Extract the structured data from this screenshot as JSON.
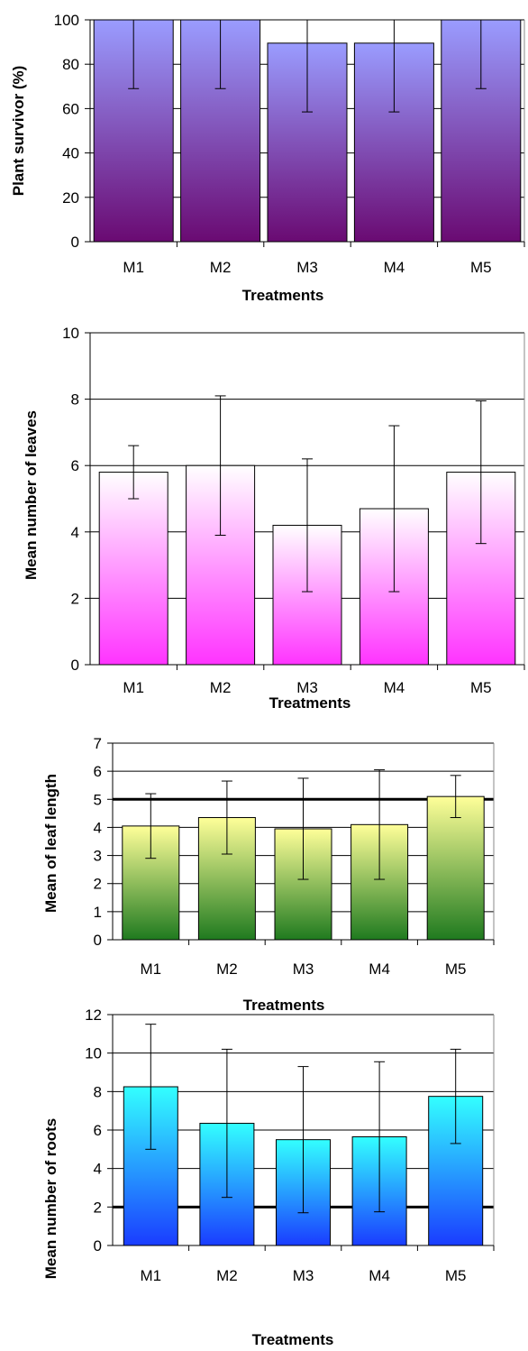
{
  "chart_data": [
    {
      "type": "bar",
      "categories": [
        "M1",
        "M2",
        "M3",
        "M4",
        "M5"
      ],
      "values": [
        100,
        100,
        89.5,
        89.5,
        100
      ],
      "error": [
        31,
        31,
        31,
        31,
        31
      ],
      "xlabel": "Treatments",
      "ylabel": "Plant survivor (%)",
      "ylim": [
        0,
        100
      ],
      "yticks": [
        "0",
        "20",
        "40",
        "60",
        "80",
        "100"
      ],
      "grid": true,
      "legend": "none",
      "bar_gradient": [
        "#9a9cff",
        "#6a0a72"
      ]
    },
    {
      "type": "bar",
      "categories": [
        "M1",
        "M2",
        "M3",
        "M4",
        "M5"
      ],
      "values": [
        5.8,
        6.0,
        4.2,
        4.7,
        5.8
      ],
      "error": [
        0.8,
        2.1,
        2.0,
        2.5,
        2.15
      ],
      "xlabel": "Treatments",
      "ylabel": "Mean number of leaves",
      "ylim": [
        0,
        10
      ],
      "yticks": [
        "0",
        "2",
        "4",
        "6",
        "8",
        "10"
      ],
      "grid": true,
      "legend": "none",
      "bar_gradient": [
        "#ffffff",
        "#ff33ff"
      ]
    },
    {
      "type": "bar",
      "categories": [
        "M1",
        "M2",
        "M3",
        "M4",
        "M5"
      ],
      "values": [
        4.05,
        4.35,
        3.95,
        4.1,
        5.1
      ],
      "error": [
        1.15,
        1.3,
        1.8,
        1.95,
        0.75
      ],
      "xlabel": "Treatments",
      "ylabel": "Mean of leaf length",
      "ylim": [
        0,
        7
      ],
      "yticks": [
        "0",
        "1",
        "2",
        "3",
        "4",
        "5",
        "6",
        "7"
      ],
      "grid": true,
      "legend": "none",
      "bar_gradient": [
        "#ffff99",
        "#1f7a1f"
      ]
    },
    {
      "type": "bar",
      "categories": [
        "M1",
        "M2",
        "M3",
        "M4",
        "M5"
      ],
      "values": [
        8.25,
        6.35,
        5.5,
        5.65,
        7.75
      ],
      "error": [
        3.25,
        3.85,
        3.8,
        3.9,
        2.45
      ],
      "xlabel": "Treatments",
      "ylabel": "Mean number of roots",
      "ylim": [
        0,
        12
      ],
      "yticks": [
        "0",
        "2",
        "4",
        "6",
        "8",
        "10",
        "12"
      ],
      "grid": true,
      "legend": "none",
      "bar_gradient": [
        "#33ffff",
        "#1a3cff"
      ]
    }
  ]
}
